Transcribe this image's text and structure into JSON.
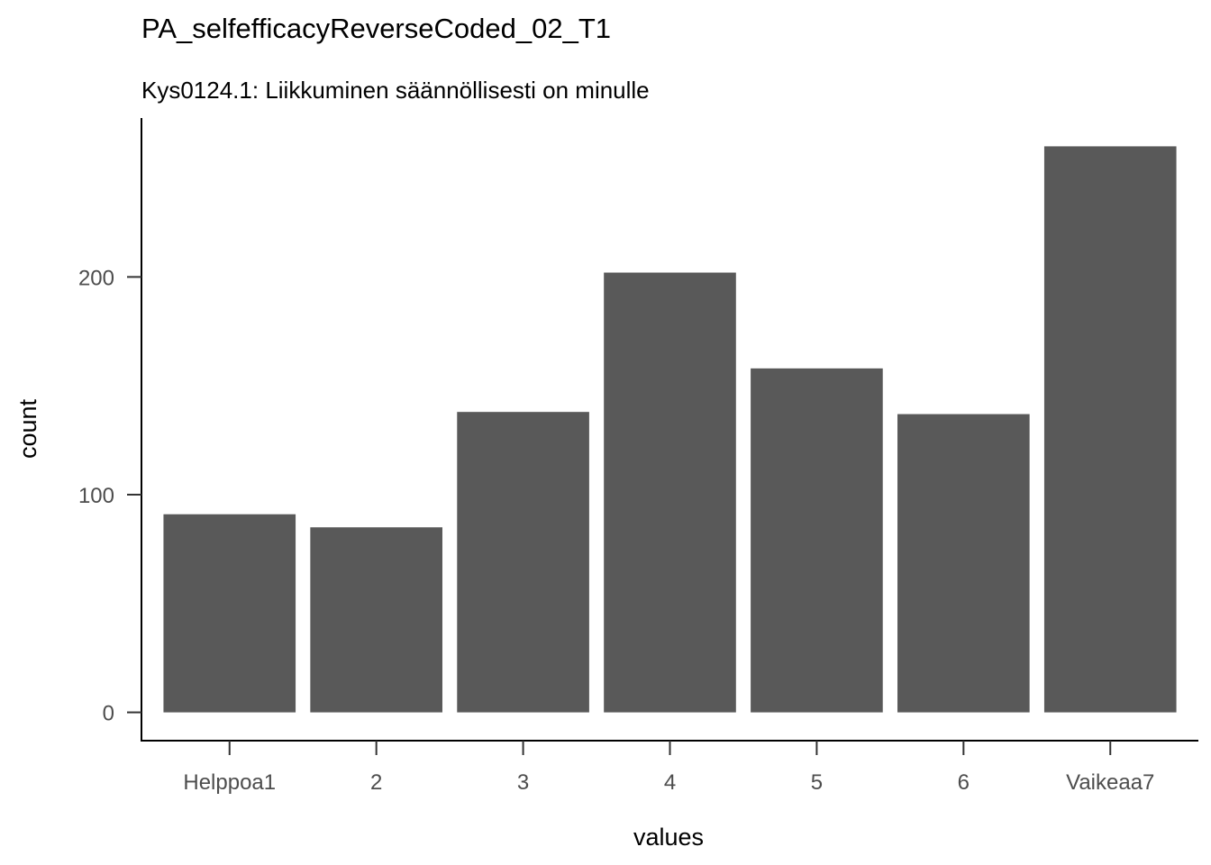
{
  "chart_data": {
    "type": "bar",
    "title": "PA_selfefficacyReverseCoded_02_T1",
    "subtitle": "Kys0124.1: Liikkuminen säännöllisesti on minulle",
    "xlabel": "values",
    "ylabel": "count",
    "categories": [
      "Helppoa1",
      "2",
      "3",
      "4",
      "5",
      "6",
      "Vaikeaa7"
    ],
    "values": [
      91,
      85,
      138,
      202,
      158,
      137,
      260
    ],
    "ylim": [
      -13,
      273
    ],
    "yticks": [
      0,
      100,
      200
    ],
    "grid": false,
    "bar_color": "#595959"
  }
}
